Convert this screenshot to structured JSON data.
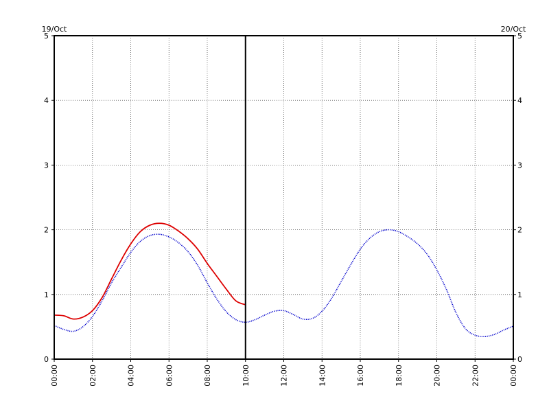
{
  "chart_data": {
    "type": "line",
    "title": "",
    "xlabel": "",
    "ylabel": "",
    "start_date_label": "19/Oct",
    "end_date_label": "20/Oct",
    "xlim_hours": [
      0,
      24
    ],
    "ylim": [
      0,
      5
    ],
    "y_ticks": [
      0,
      1,
      2,
      3,
      4,
      5
    ],
    "x_tick_labels": [
      "00:00",
      "02:00",
      "04:00",
      "06:00",
      "08:00",
      "10:00",
      "12:00",
      "14:00",
      "16:00",
      "18:00",
      "20:00",
      "22:00",
      "00:00"
    ],
    "grid": true,
    "grid_style": "dotted",
    "current_time_marker_hour": 10,
    "series": [
      {
        "color": "#0000cc",
        "style": "dotted",
        "x": [
          0,
          0.5,
          1,
          1.5,
          2,
          2.5,
          3,
          3.5,
          4,
          4.5,
          5,
          5.5,
          6,
          6.5,
          7,
          7.5,
          8,
          8.5,
          9,
          9.5,
          10,
          10.5,
          11,
          11.5,
          12,
          12.5,
          13,
          13.5,
          14,
          14.5,
          15,
          15.5,
          16,
          16.5,
          17,
          17.5,
          18,
          18.5,
          19,
          19.5,
          20,
          20.5,
          21,
          21.5,
          22,
          22.5,
          23,
          23.5,
          24
        ],
        "values": [
          0.52,
          0.46,
          0.43,
          0.5,
          0.66,
          0.9,
          1.18,
          1.42,
          1.65,
          1.82,
          1.91,
          1.93,
          1.89,
          1.8,
          1.66,
          1.45,
          1.18,
          0.93,
          0.73,
          0.61,
          0.57,
          0.61,
          0.68,
          0.74,
          0.75,
          0.69,
          0.62,
          0.63,
          0.74,
          0.94,
          1.2,
          1.46,
          1.7,
          1.87,
          1.97,
          2.0,
          1.97,
          1.89,
          1.78,
          1.62,
          1.38,
          1.08,
          0.72,
          0.47,
          0.37,
          0.35,
          0.38,
          0.45,
          0.51
        ]
      },
      {
        "color": "#dd0000",
        "style": "solid",
        "x": [
          0,
          0.5,
          1,
          1.5,
          2,
          2.5,
          3,
          3.5,
          4,
          4.5,
          5,
          5.5,
          6,
          6.5,
          7,
          7.5,
          8,
          8.5,
          9,
          9.5,
          10
        ],
        "values": [
          0.68,
          0.67,
          0.62,
          0.65,
          0.75,
          0.95,
          1.24,
          1.53,
          1.78,
          1.97,
          2.07,
          2.1,
          2.07,
          1.98,
          1.86,
          1.7,
          1.48,
          1.28,
          1.08,
          0.9,
          0.84
        ]
      }
    ]
  }
}
